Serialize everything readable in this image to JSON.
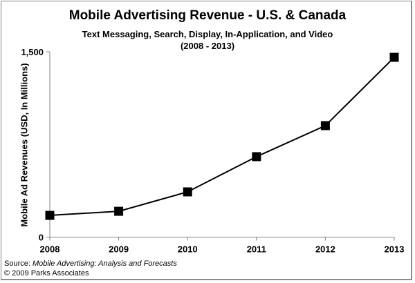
{
  "chart_data": {
    "type": "line",
    "title": "Mobile Advertising Revenue - U.S. & Canada",
    "subtitle": "Text Messaging, Search, Display, In-Application, and Video",
    "date_range": "(2008 - 2013)",
    "xlabel": "",
    "ylabel": "Mobile Ad Revenues (USD, In Millions)",
    "categories": [
      "2008",
      "2009",
      "2010",
      "2011",
      "2012",
      "2013"
    ],
    "series": [
      {
        "name": "Mobile Ad Revenues",
        "values": [
          176,
          209,
          366,
          651,
          902,
          1455
        ],
        "color": "#000000",
        "marker": "square"
      }
    ],
    "ylim": [
      0,
      1500
    ],
    "yticks": [
      0,
      1500
    ],
    "ytick_labels": [
      "0",
      "1,500"
    ],
    "grid": false,
    "legend": "none"
  },
  "footer": {
    "source_prefix": "Source: ",
    "source_title": "Mobile Advertising: Analysis and Forecasts",
    "copyright": "© 2009 Parks Associates"
  }
}
